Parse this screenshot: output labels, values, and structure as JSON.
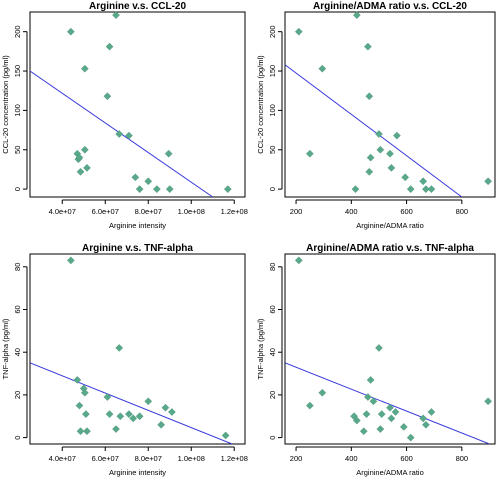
{
  "chart_data": [
    {
      "type": "scatter",
      "title": "Arginine v.s. CCL-20",
      "xlabel": "Arginine intensity",
      "ylabel": "CCL-20 concentration (pg/ml)",
      "xlim": [
        25000000,
        125000000
      ],
      "ylim": [
        -10,
        225
      ],
      "x_ticks": [
        40000000,
        60000000,
        80000000,
        100000000,
        120000000
      ],
      "x_tick_labels": [
        "4.0e+07",
        "6.0e+07",
        "8.0e+07",
        "1.0e+08",
        "1.2e+08"
      ],
      "y_ticks": [
        0,
        50,
        100,
        150,
        200
      ],
      "y_tick_labels": [
        "0",
        "50",
        "100",
        "150",
        "200"
      ],
      "points": [
        [
          44000000,
          200
        ],
        [
          47000000,
          45
        ],
        [
          47500000,
          38
        ],
        [
          48000000,
          40
        ],
        [
          48500000,
          22
        ],
        [
          50500000,
          153
        ],
        [
          50500000,
          50
        ],
        [
          51500000,
          27
        ],
        [
          61000000,
          118
        ],
        [
          62000000,
          181
        ],
        [
          65000000,
          221
        ],
        [
          66500000,
          70
        ],
        [
          71000000,
          68
        ],
        [
          74000000,
          15
        ],
        [
          76000000,
          0
        ],
        [
          80000000,
          10
        ],
        [
          84000000,
          0
        ],
        [
          89500000,
          45
        ],
        [
          90000000,
          0
        ],
        [
          117000000,
          0
        ]
      ],
      "fit_line": [
        [
          25000000,
          150
        ],
        [
          110000000,
          -10
        ]
      ],
      "marker_color": "#5aa88a",
      "line_color": "#3b3bdc"
    },
    {
      "type": "scatter",
      "title": "Arginine/ADMA ratio v.s. CCL-20",
      "xlabel": "Arginine/ADMA ratio",
      "ylabel": "CCL-20 concentration (pg/ml)",
      "xlim": [
        160,
        920
      ],
      "ylim": [
        -10,
        225
      ],
      "x_ticks": [
        200,
        400,
        600,
        800
      ],
      "x_tick_labels": [
        "200",
        "400",
        "600",
        "800"
      ],
      "y_ticks": [
        0,
        50,
        100,
        150,
        200
      ],
      "y_tick_labels": [
        "0",
        "50",
        "100",
        "150",
        "200"
      ],
      "points": [
        [
          210,
          200
        ],
        [
          250,
          45
        ],
        [
          295,
          153
        ],
        [
          415,
          0
        ],
        [
          420,
          221
        ],
        [
          460,
          181
        ],
        [
          465,
          118
        ],
        [
          465,
          22
        ],
        [
          470,
          40
        ],
        [
          500,
          70
        ],
        [
          505,
          50
        ],
        [
          540,
          45
        ],
        [
          545,
          27
        ],
        [
          565,
          68
        ],
        [
          595,
          15
        ],
        [
          615,
          0
        ],
        [
          660,
          10
        ],
        [
          670,
          0
        ],
        [
          690,
          0
        ],
        [
          895,
          10
        ]
      ],
      "fit_line": [
        [
          160,
          158
        ],
        [
          800,
          -10
        ]
      ],
      "marker_color": "#5aa88a",
      "line_color": "#3b3bdc"
    },
    {
      "type": "scatter",
      "title": "Arginine v.s. TNF-alpha",
      "xlabel": "Arginine intensity",
      "ylabel": "TNF-alpha (pg/ml)",
      "xlim": [
        25000000,
        125000000
      ],
      "ylim": [
        -3,
        86
      ],
      "x_ticks": [
        40000000,
        60000000,
        80000000,
        100000000,
        120000000
      ],
      "x_tick_labels": [
        "4.0e+07",
        "6.0e+07",
        "8.0e+07",
        "1.0e+08",
        "1.2e+08"
      ],
      "y_ticks": [
        0,
        20,
        40,
        60,
        80
      ],
      "y_tick_labels": [
        "0",
        "20",
        "40",
        "60",
        "80"
      ],
      "points": [
        [
          44000000,
          83
        ],
        [
          47000000,
          27
        ],
        [
          48000000,
          15
        ],
        [
          48500000,
          3
        ],
        [
          50000000,
          23
        ],
        [
          50500000,
          21
        ],
        [
          51000000,
          11
        ],
        [
          51500000,
          3
        ],
        [
          61000000,
          19
        ],
        [
          62000000,
          11
        ],
        [
          65000000,
          4
        ],
        [
          66500000,
          42
        ],
        [
          67000000,
          10
        ],
        [
          71000000,
          11
        ],
        [
          73000000,
          9
        ],
        [
          76000000,
          10
        ],
        [
          80000000,
          17
        ],
        [
          86000000,
          6
        ],
        [
          88000000,
          14
        ],
        [
          91000000,
          12
        ],
        [
          116000000,
          1
        ]
      ],
      "fit_line": [
        [
          25000000,
          35
        ],
        [
          119000000,
          -3
        ]
      ],
      "marker_color": "#5aa88a",
      "line_color": "#3b3bdc"
    },
    {
      "type": "scatter",
      "title": "Arginine/ADMA ratio v.s. TNF-alpha",
      "xlabel": "Arginine/ADMA ratio",
      "ylabel": "TNF-alpha (pg/ml)",
      "xlim": [
        160,
        920
      ],
      "ylim": [
        -3,
        86
      ],
      "x_ticks": [
        200,
        400,
        600,
        800
      ],
      "x_tick_labels": [
        "200",
        "400",
        "600",
        "800"
      ],
      "y_ticks": [
        0,
        20,
        40,
        60,
        80
      ],
      "y_tick_labels": [
        "0",
        "20",
        "40",
        "60",
        "80"
      ],
      "points": [
        [
          210,
          83
        ],
        [
          250,
          15
        ],
        [
          295,
          21
        ],
        [
          410,
          10
        ],
        [
          420,
          8
        ],
        [
          445,
          3
        ],
        [
          455,
          11
        ],
        [
          460,
          19
        ],
        [
          470,
          27
        ],
        [
          480,
          17
        ],
        [
          500,
          42
        ],
        [
          505,
          4
        ],
        [
          510,
          11
        ],
        [
          540,
          14
        ],
        [
          545,
          9
        ],
        [
          560,
          12
        ],
        [
          590,
          5
        ],
        [
          615,
          0
        ],
        [
          660,
          9
        ],
        [
          670,
          6
        ],
        [
          690,
          12
        ],
        [
          895,
          17
        ]
      ],
      "fit_line": [
        [
          160,
          35
        ],
        [
          900,
          -3
        ]
      ],
      "marker_color": "#5aa88a",
      "line_color": "#3b3bdc"
    }
  ]
}
